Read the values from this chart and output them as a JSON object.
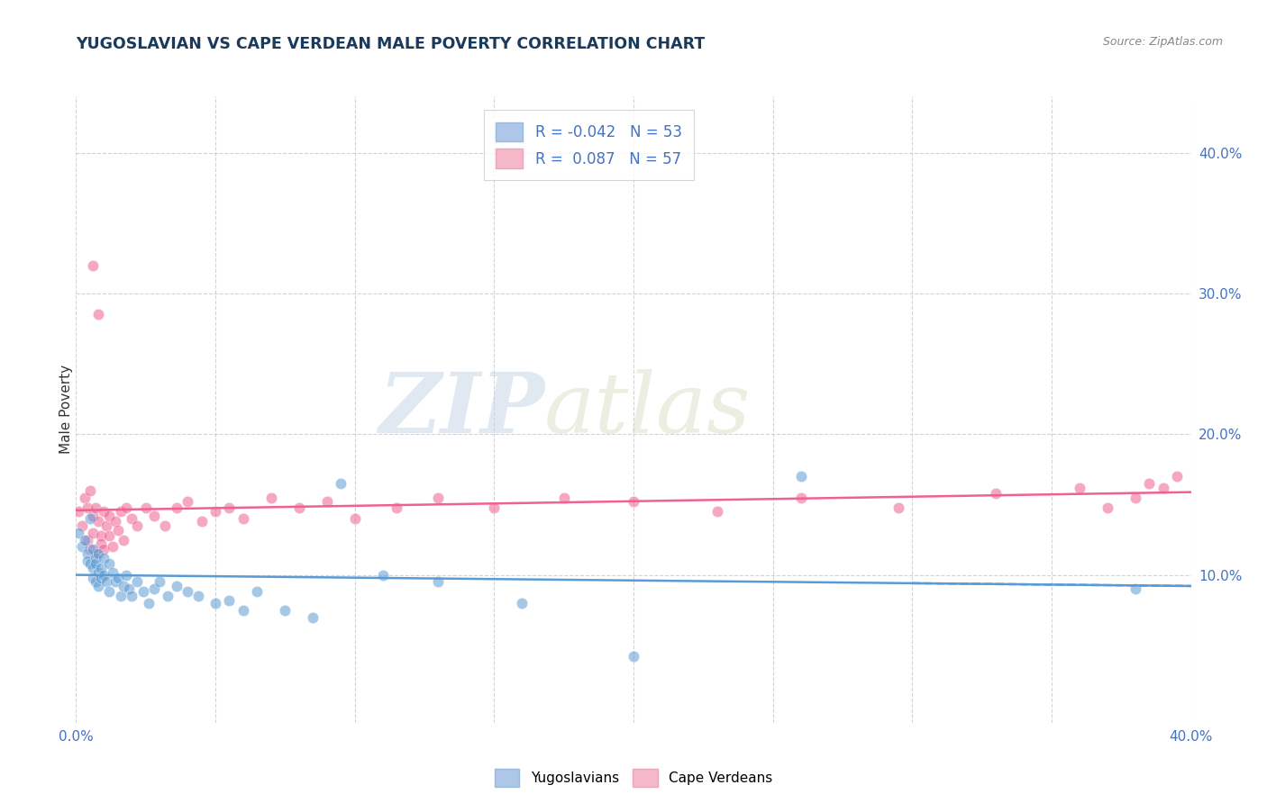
{
  "title": "YUGOSLAVIAN VS CAPE VERDEAN MALE POVERTY CORRELATION CHART",
  "source": "Source: ZipAtlas.com",
  "ylabel": "Male Poverty",
  "yticks": [
    "10.0%",
    "20.0%",
    "30.0%",
    "40.0%"
  ],
  "ytick_vals": [
    0.1,
    0.2,
    0.3,
    0.4
  ],
  "xlim": [
    0.0,
    0.4
  ],
  "ylim": [
    -0.005,
    0.44
  ],
  "blue_color": "#5b9bd5",
  "pink_color": "#f06090",
  "blue_fill": "#aec6e8",
  "pink_fill": "#f4b8c8",
  "R_yugo": -0.042,
  "N_yugo": 53,
  "R_cape": 0.087,
  "N_cape": 57,
  "yugo_x": [
    0.001,
    0.002,
    0.003,
    0.004,
    0.004,
    0.005,
    0.005,
    0.006,
    0.006,
    0.006,
    0.007,
    0.007,
    0.007,
    0.008,
    0.008,
    0.008,
    0.009,
    0.009,
    0.01,
    0.01,
    0.011,
    0.012,
    0.012,
    0.013,
    0.014,
    0.015,
    0.016,
    0.017,
    0.018,
    0.019,
    0.02,
    0.022,
    0.024,
    0.026,
    0.028,
    0.03,
    0.033,
    0.036,
    0.04,
    0.044,
    0.05,
    0.055,
    0.06,
    0.065,
    0.075,
    0.085,
    0.095,
    0.11,
    0.13,
    0.16,
    0.2,
    0.26,
    0.38
  ],
  "yugo_y": [
    0.13,
    0.12,
    0.125,
    0.115,
    0.11,
    0.108,
    0.14,
    0.105,
    0.118,
    0.098,
    0.112,
    0.095,
    0.108,
    0.102,
    0.115,
    0.092,
    0.098,
    0.105,
    0.1,
    0.112,
    0.095,
    0.108,
    0.088,
    0.102,
    0.095,
    0.098,
    0.085,
    0.092,
    0.1,
    0.09,
    0.085,
    0.095,
    0.088,
    0.08,
    0.09,
    0.095,
    0.085,
    0.092,
    0.088,
    0.085,
    0.08,
    0.082,
    0.075,
    0.088,
    0.075,
    0.07,
    0.165,
    0.1,
    0.095,
    0.08,
    0.042,
    0.17,
    0.09
  ],
  "cape_x": [
    0.001,
    0.002,
    0.003,
    0.004,
    0.004,
    0.005,
    0.005,
    0.006,
    0.006,
    0.006,
    0.007,
    0.007,
    0.008,
    0.008,
    0.009,
    0.009,
    0.01,
    0.01,
    0.011,
    0.012,
    0.012,
    0.013,
    0.014,
    0.015,
    0.016,
    0.017,
    0.018,
    0.02,
    0.022,
    0.025,
    0.028,
    0.032,
    0.036,
    0.04,
    0.045,
    0.05,
    0.055,
    0.06,
    0.07,
    0.08,
    0.09,
    0.1,
    0.115,
    0.13,
    0.15,
    0.175,
    0.2,
    0.23,
    0.26,
    0.295,
    0.33,
    0.36,
    0.37,
    0.38,
    0.385,
    0.39,
    0.395
  ],
  "cape_y": [
    0.145,
    0.135,
    0.155,
    0.148,
    0.125,
    0.16,
    0.118,
    0.142,
    0.32,
    0.13,
    0.148,
    0.115,
    0.138,
    0.285,
    0.128,
    0.122,
    0.145,
    0.118,
    0.135,
    0.142,
    0.128,
    0.12,
    0.138,
    0.132,
    0.145,
    0.125,
    0.148,
    0.14,
    0.135,
    0.148,
    0.142,
    0.135,
    0.148,
    0.152,
    0.138,
    0.145,
    0.148,
    0.14,
    0.155,
    0.148,
    0.152,
    0.14,
    0.148,
    0.155,
    0.148,
    0.155,
    0.152,
    0.145,
    0.155,
    0.148,
    0.158,
    0.162,
    0.148,
    0.155,
    0.165,
    0.162,
    0.17
  ]
}
